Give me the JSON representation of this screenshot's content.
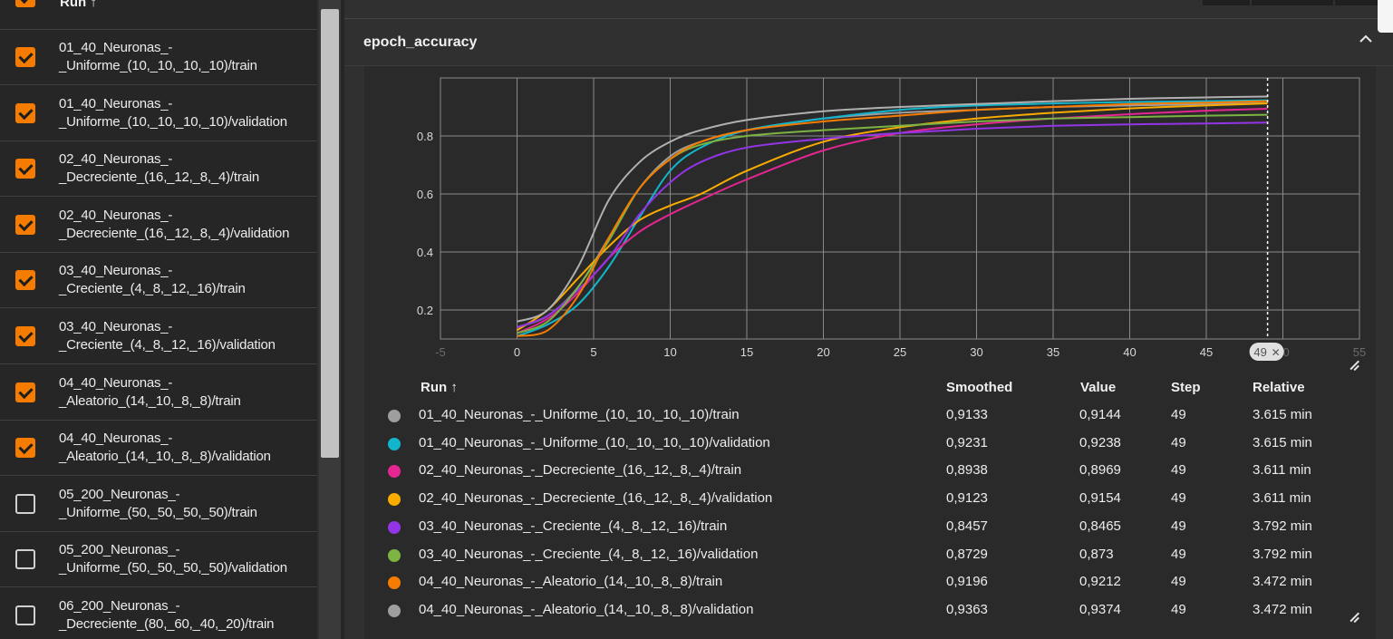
{
  "sidebar": {
    "header_label": "Run ↑",
    "runs": [
      {
        "name": "01_40_Neuronas_-\n_Uniforme_(10,_10,_10,_10)/train",
        "checked": true
      },
      {
        "name": "01_40_Neuronas_-\n_Uniforme_(10,_10,_10,_10)/validation",
        "checked": true
      },
      {
        "name": "02_40_Neuronas_-\n_Decreciente_(16,_12,_8,_4)/train",
        "checked": true
      },
      {
        "name": "02_40_Neuronas_-\n_Decreciente_(16,_12,_8,_4)/validation",
        "checked": true
      },
      {
        "name": "03_40_Neuronas_-\n_Creciente_(4,_8,_12,_16)/train",
        "checked": true
      },
      {
        "name": "03_40_Neuronas_-\n_Creciente_(4,_8,_12,_16)/validation",
        "checked": true
      },
      {
        "name": "04_40_Neuronas_-\n_Aleatorio_(14,_10,_8,_8)/train",
        "checked": true
      },
      {
        "name": "04_40_Neuronas_-\n_Aleatorio_(14,_10,_8,_8)/validation",
        "checked": true
      },
      {
        "name": "05_200_Neuronas_-\n_Uniforme_(50,_50,_50,_50)/train",
        "checked": false
      },
      {
        "name": "05_200_Neuronas_-\n_Uniforme_(50,_50,_50,_50)/validation",
        "checked": false
      },
      {
        "name": "06_200_Neuronas_-\n_Decreciente_(80,_60,_40,_20)/train",
        "checked": false
      }
    ]
  },
  "card": {
    "title": "epoch_accuracy",
    "collapse_icon": "chevron-up-icon",
    "step_marker": "49",
    "step_marker_close": "✕"
  },
  "chart_data": {
    "type": "line",
    "title": "",
    "xlabel": "",
    "ylabel": "",
    "xlim": [
      -5,
      55
    ],
    "ylim": [
      0.1,
      1.0
    ],
    "x_ticks": [
      "-5",
      "0",
      "5",
      "10",
      "15",
      "20",
      "25",
      "30",
      "35",
      "40",
      "45",
      "50",
      "55"
    ],
    "y_ticks": [
      "0.2",
      "0.4",
      "0.6",
      "0.8"
    ],
    "grid": true,
    "cursor_step": 49,
    "x": [
      0,
      2,
      4,
      6,
      8,
      10,
      12,
      15,
      20,
      25,
      30,
      35,
      40,
      45,
      49
    ],
    "series": [
      {
        "name": "01_40_Neuronas_-_Uniforme_(10,_10,_10,_10)/train",
        "color": "#9e9e9e",
        "values": [
          0.14,
          0.18,
          0.28,
          0.45,
          0.62,
          0.73,
          0.78,
          0.82,
          0.86,
          0.88,
          0.89,
          0.9,
          0.905,
          0.91,
          0.913
        ]
      },
      {
        "name": "01_40_Neuronas_-_Uniforme_(10,_10,_10,_10)/validation",
        "color": "#12b5cb",
        "values": [
          0.11,
          0.15,
          0.22,
          0.35,
          0.52,
          0.68,
          0.76,
          0.82,
          0.86,
          0.89,
          0.905,
          0.912,
          0.917,
          0.92,
          0.923
        ]
      },
      {
        "name": "02_40_Neuronas_-_Decreciente_(16,_12,_8,_4)/train",
        "color": "#e52592",
        "values": [
          0.12,
          0.17,
          0.26,
          0.38,
          0.47,
          0.53,
          0.58,
          0.65,
          0.75,
          0.81,
          0.84,
          0.86,
          0.875,
          0.887,
          0.894
        ]
      },
      {
        "name": "02_40_Neuronas_-_Decreciente_(16,_12,_8,_4)/validation",
        "color": "#f9ab00",
        "values": [
          0.13,
          0.2,
          0.31,
          0.42,
          0.51,
          0.56,
          0.6,
          0.68,
          0.78,
          0.83,
          0.86,
          0.88,
          0.895,
          0.905,
          0.912
        ]
      },
      {
        "name": "03_40_Neuronas_-_Creciente_(4,_8,_12,_16)/train",
        "color": "#9334e6",
        "values": [
          0.14,
          0.18,
          0.27,
          0.38,
          0.53,
          0.64,
          0.71,
          0.76,
          0.79,
          0.81,
          0.825,
          0.835,
          0.84,
          0.843,
          0.846
        ]
      },
      {
        "name": "03_40_Neuronas_-_Creciente_(4,_8,_12,_16)/validation",
        "color": "#7cb342",
        "values": [
          0.12,
          0.16,
          0.28,
          0.44,
          0.62,
          0.72,
          0.77,
          0.8,
          0.82,
          0.835,
          0.85,
          0.86,
          0.865,
          0.87,
          0.873
        ]
      },
      {
        "name": "04_40_Neuronas_-_Aleatorio_(14,_10,_8,_8)/train",
        "color": "#f57c00",
        "values": [
          0.11,
          0.13,
          0.25,
          0.45,
          0.62,
          0.72,
          0.78,
          0.82,
          0.85,
          0.87,
          0.89,
          0.9,
          0.91,
          0.915,
          0.92
        ]
      },
      {
        "name": "04_40_Neuronas_-_Aleatorio_(14,_10,_8,_8)/validation",
        "color": "#b0b0b0",
        "values": [
          0.16,
          0.2,
          0.35,
          0.58,
          0.71,
          0.78,
          0.82,
          0.855,
          0.885,
          0.9,
          0.91,
          0.92,
          0.928,
          0.933,
          0.936
        ]
      }
    ]
  },
  "table": {
    "headers": {
      "run": "Run ↑",
      "smoothed": "Smoothed",
      "value": "Value",
      "step": "Step",
      "relative": "Relative"
    },
    "rows": [
      {
        "run": "01_40_Neuronas_-_Uniforme_(10,_10,_10,_10)/train",
        "smoothed": "0,9133",
        "value": "0,9144",
        "step": "49",
        "relative": "3.615 min",
        "color": "#9e9e9e"
      },
      {
        "run": "01_40_Neuronas_-_Uniforme_(10,_10,_10,_10)/validation",
        "smoothed": "0,9231",
        "value": "0,9238",
        "step": "49",
        "relative": "3.615 min",
        "color": "#12b5cb"
      },
      {
        "run": "02_40_Neuronas_-_Decreciente_(16,_12,_8,_4)/train",
        "smoothed": "0,8938",
        "value": "0,8969",
        "step": "49",
        "relative": "3.611 min",
        "color": "#e52592"
      },
      {
        "run": "02_40_Neuronas_-_Decreciente_(16,_12,_8,_4)/validation",
        "smoothed": "0,9123",
        "value": "0,9154",
        "step": "49",
        "relative": "3.611 min",
        "color": "#f9ab00"
      },
      {
        "run": "03_40_Neuronas_-_Creciente_(4,_8,_12,_16)/train",
        "smoothed": "0,8457",
        "value": "0,8465",
        "step": "49",
        "relative": "3.792 min",
        "color": "#9334e6"
      },
      {
        "run": "03_40_Neuronas_-_Creciente_(4,_8,_12,_16)/validation",
        "smoothed": "0,8729",
        "value": "0,873",
        "step": "49",
        "relative": "3.792 min",
        "color": "#7cb342"
      },
      {
        "run": "04_40_Neuronas_-_Aleatorio_(14,_10,_8,_8)/train",
        "smoothed": "0,9196",
        "value": "0,9212",
        "step": "49",
        "relative": "3.472 min",
        "color": "#f57c00"
      },
      {
        "run": "04_40_Neuronas_-_Aleatorio_(14,_10,_8,_8)/validation",
        "smoothed": "0,9363",
        "value": "0,9374",
        "step": "49",
        "relative": "3.472 min",
        "color": "#9e9e9e"
      }
    ]
  }
}
